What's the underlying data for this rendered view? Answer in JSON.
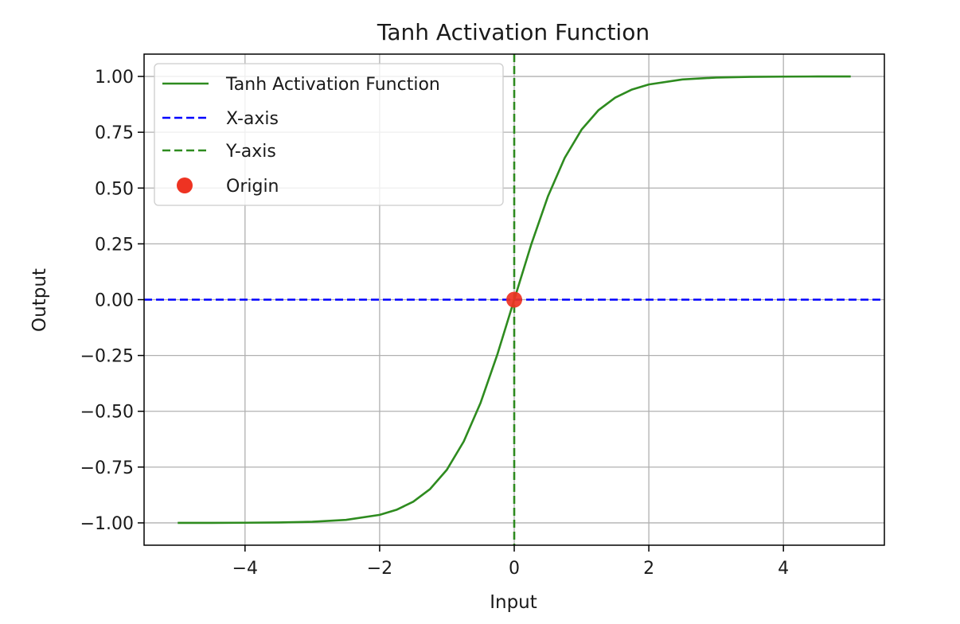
{
  "chart_data": {
    "type": "line",
    "title": "Tanh Activation Function",
    "xlabel": "Input",
    "ylabel": "Output",
    "xlim": [
      -5.5,
      5.5
    ],
    "ylim": [
      -1.1,
      1.1
    ],
    "x_ticks": [
      -4,
      -2,
      0,
      2,
      4
    ],
    "x_tick_labels": [
      "−4",
      "−2",
      "0",
      "2",
      "4"
    ],
    "y_ticks": [
      1.0,
      0.75,
      0.5,
      0.25,
      0.0,
      -0.25,
      -0.5,
      -0.75,
      -1.0
    ],
    "y_tick_labels": [
      "1.00",
      "0.75",
      "0.50",
      "0.25",
      "0.00",
      "−0.25",
      "−0.50",
      "−0.75",
      "−1.00"
    ],
    "grid": true,
    "legend_position": "top-left",
    "series": [
      {
        "name": "Tanh Activation Function",
        "style": "solid",
        "color": "#2e8b1f",
        "x": [
          -5.0,
          -4.5,
          -4.0,
          -3.5,
          -3.0,
          -2.5,
          -2.0,
          -1.75,
          -1.5,
          -1.25,
          -1.0,
          -0.75,
          -0.5,
          -0.25,
          0.0,
          0.25,
          0.5,
          0.75,
          1.0,
          1.25,
          1.5,
          1.75,
          2.0,
          2.5,
          3.0,
          3.5,
          4.0,
          4.5,
          5.0
        ],
        "y": [
          -0.9999,
          -0.9998,
          -0.9993,
          -0.9982,
          -0.9951,
          -0.9866,
          -0.964,
          -0.9414,
          -0.9051,
          -0.8483,
          -0.7616,
          -0.6351,
          -0.4621,
          -0.2449,
          0.0,
          0.2449,
          0.4621,
          0.6351,
          0.7616,
          0.8483,
          0.9051,
          0.9414,
          0.964,
          0.9866,
          0.9951,
          0.9982,
          0.9993,
          0.9998,
          0.9999
        ]
      },
      {
        "name": "X-axis",
        "style": "dashed",
        "color": "#0000ff",
        "orientation": "horizontal",
        "value": 0
      },
      {
        "name": "Y-axis",
        "style": "dashed",
        "color": "#2e8b1f",
        "orientation": "vertical",
        "value": 0
      },
      {
        "name": "Origin",
        "style": "marker",
        "color": "#ee3322",
        "x": [
          0
        ],
        "y": [
          0
        ]
      }
    ]
  }
}
